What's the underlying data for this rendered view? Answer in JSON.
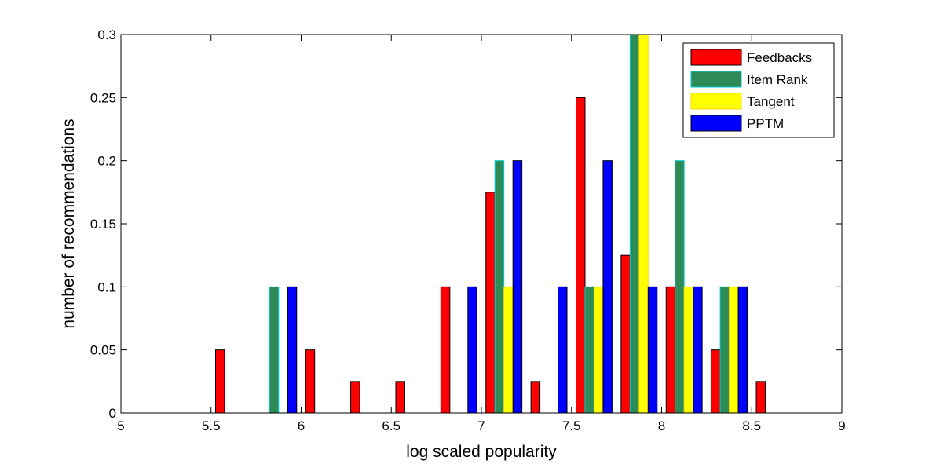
{
  "chart_data": {
    "type": "bar",
    "title": "",
    "xlabel": "log scaled popularity",
    "ylabel": "number of recommendations",
    "xlim": [
      5,
      9
    ],
    "ylim": [
      0,
      0.3
    ],
    "xticks": [
      "5",
      "5.5",
      "6",
      "6.5",
      "7",
      "7.5",
      "8",
      "8.5",
      "9"
    ],
    "yticks": [
      "0",
      "0.05",
      "0.1",
      "0.15",
      "0.2",
      "0.25",
      "0.3"
    ],
    "grid": false,
    "legend_position": "top-right",
    "x": [
      5.125,
      5.375,
      5.625,
      5.875,
      6.125,
      6.375,
      6.625,
      6.875,
      7.125,
      7.375,
      7.625,
      7.875,
      8.125,
      8.375,
      8.625,
      8.875
    ],
    "series": [
      {
        "name": "Feedbacks",
        "color": "#ff0000",
        "edge": "#000000",
        "values": [
          0,
          0,
          0.05,
          0,
          0.05,
          0.025,
          0.025,
          0.1,
          0.175,
          0.025,
          0.25,
          0.125,
          0.1,
          0.05,
          0.025,
          0
        ]
      },
      {
        "name": "Item Rank",
        "color": "#2e8b57",
        "edge": "#00ced1",
        "values": [
          0,
          0,
          0,
          0.1,
          0,
          0,
          0,
          0,
          0.2,
          0,
          0.1,
          0.3,
          0.2,
          0.1,
          0,
          0
        ]
      },
      {
        "name": "Tangent",
        "color": "#ffff00",
        "edge": "#ffd700",
        "values": [
          0,
          0,
          0,
          0,
          0,
          0,
          0,
          0,
          0.1,
          0,
          0.1,
          0.3,
          0.1,
          0.1,
          0,
          0
        ]
      },
      {
        "name": "PPTM",
        "color": "#0000ff",
        "edge": "#000000",
        "values": [
          0,
          0,
          0,
          0.1,
          0,
          0,
          0,
          0.1,
          0.2,
          0.1,
          0.2,
          0.1,
          0.1,
          0.1,
          0,
          0
        ]
      }
    ]
  }
}
